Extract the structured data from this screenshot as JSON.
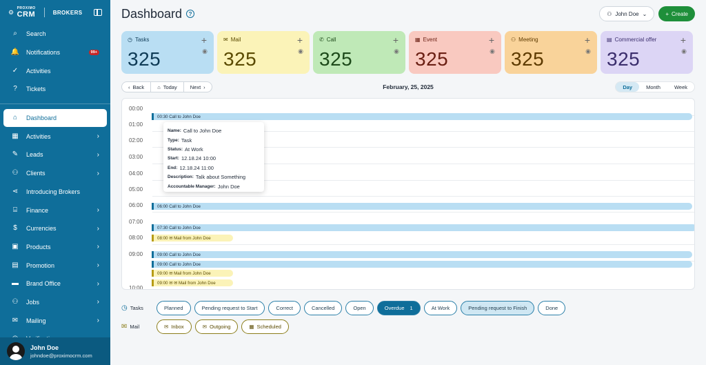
{
  "brand": {
    "crm_top": "PROXIMO",
    "crm": "CRM",
    "section": "BROKERS"
  },
  "sidebar": {
    "top_items": [
      {
        "label": "Search",
        "icon": "search-icon",
        "glyph": "⌕"
      },
      {
        "label": "Notifications",
        "icon": "bell-icon",
        "glyph": "🔔",
        "badge": "99+"
      },
      {
        "label": "Activities",
        "icon": "check-circle-icon",
        "glyph": "✓"
      },
      {
        "label": "Tickets",
        "icon": "ticket-icon",
        "glyph": "?"
      }
    ],
    "items": [
      {
        "label": "Dashboard",
        "icon": "home-icon",
        "glyph": "⌂",
        "active": true
      },
      {
        "label": "Activities",
        "icon": "calendar-icon",
        "glyph": "▦",
        "arrow": true
      },
      {
        "label": "Leads",
        "icon": "pencil-icon",
        "glyph": "✎",
        "arrow": true
      },
      {
        "label": "Clients",
        "icon": "users-icon",
        "glyph": "⚇",
        "arrow": true
      },
      {
        "label": "Introducing Brokers",
        "icon": "share-icon",
        "glyph": "⋖"
      },
      {
        "label": "Finance",
        "icon": "bank-icon",
        "glyph": "⌸",
        "arrow": true
      },
      {
        "label": "Currencies",
        "icon": "dollar-icon",
        "glyph": "$",
        "arrow": true
      },
      {
        "label": "Products",
        "icon": "box-icon",
        "glyph": "▣",
        "arrow": true
      },
      {
        "label": "Promotion",
        "icon": "promotion-icon",
        "glyph": "▤",
        "arrow": true
      },
      {
        "label": "Brand Office",
        "icon": "briefcase-icon",
        "glyph": "▬",
        "arrow": true
      },
      {
        "label": "Jobs",
        "icon": "jobs-icon",
        "glyph": "⚇",
        "arrow": true
      },
      {
        "label": "Mailing",
        "icon": "mail-icon",
        "glyph": "✉",
        "arrow": true
      },
      {
        "label": "Verification",
        "icon": "verify-icon",
        "glyph": "◎",
        "arrow": true
      }
    ],
    "user": {
      "name": "John Doe",
      "email": "johndoe@proximocrm.com"
    }
  },
  "header": {
    "title": "Dashboard",
    "user_button": "John Doe",
    "create_button": "Create"
  },
  "cards": [
    {
      "label": "Tasks",
      "value": "325",
      "icon": "clock-icon",
      "glyph": "◷",
      "bg": "#b9def3",
      "fg": "#0f3b56"
    },
    {
      "label": "Mail",
      "value": "325",
      "icon": "mail-icon",
      "glyph": "✉",
      "bg": "#fbf3b8",
      "fg": "#5a4a00"
    },
    {
      "label": "Call",
      "value": "325",
      "icon": "phone-icon",
      "glyph": "✆",
      "bg": "#bfe9b7",
      "fg": "#1d4a1a"
    },
    {
      "label": "Event",
      "value": "325",
      "icon": "calendar-icon",
      "glyph": "▦",
      "bg": "#f9c9c0",
      "fg": "#6b2014"
    },
    {
      "label": "Meeting",
      "value": "325",
      "icon": "people-icon",
      "glyph": "⚇",
      "bg": "#f9d39a",
      "fg": "#5d3a00"
    },
    {
      "label": "Commercial offer",
      "value": "325",
      "icon": "offer-icon",
      "glyph": "▤",
      "bg": "#dcd5f5",
      "fg": "#3b2e6d"
    }
  ],
  "nav": {
    "back": "Back",
    "today": "Today",
    "next": "Next",
    "date": "February, 25, 2025"
  },
  "views": [
    "Day",
    "Month",
    "Week"
  ],
  "hours": [
    "00:00",
    "01:00",
    "02:00",
    "03:00",
    "04:00",
    "05:00",
    "06:00",
    "07:00",
    "08:00",
    "09:00",
    "10:00"
  ],
  "events": [
    {
      "type": "call",
      "text": "00:30  Call to John Doe"
    },
    {
      "type": "call",
      "text": "06:00  Call to John Doe"
    },
    {
      "type": "call",
      "text": "07:30  Call to John Doe"
    },
    {
      "type": "mail",
      "text": "08:00  ✉ Mail from John Doe"
    },
    {
      "type": "call",
      "text": "09:00  Call to John Doe"
    },
    {
      "type": "call",
      "text": "09:00  Call to John Doe"
    },
    {
      "type": "mail",
      "text": "09:00  ✉ Mail from John Doe"
    },
    {
      "type": "mail",
      "text": "09:00  ✉ ✉ Mail from John Doe"
    }
  ],
  "tooltip": {
    "name_k": "Name:",
    "name_v": "Call to John Doe",
    "type_k": "Type:",
    "type_v": "Task",
    "status_k": "Status:",
    "status_v": "At Work",
    "start_k": "Start:",
    "start_v": "12.18.24 10:00",
    "end_k": "End:",
    "end_v": "12.18.24 11:00",
    "desc_k": "Description:",
    "desc_v": "Talk about Something",
    "mgr_k": "Accountable Manager:",
    "mgr_v": "John Doe"
  },
  "filters": {
    "tasks_label": "Tasks",
    "tasks": [
      "Planned",
      "Pending request to Start",
      "Correct",
      "Cancelled",
      "Open",
      "Overdue",
      "At Work",
      "Pending request to Finish",
      "Done"
    ],
    "overdue_count": "1",
    "mail_label": "Mail",
    "mail": [
      "Inbox",
      "Outgoing",
      "Scheduled"
    ]
  }
}
